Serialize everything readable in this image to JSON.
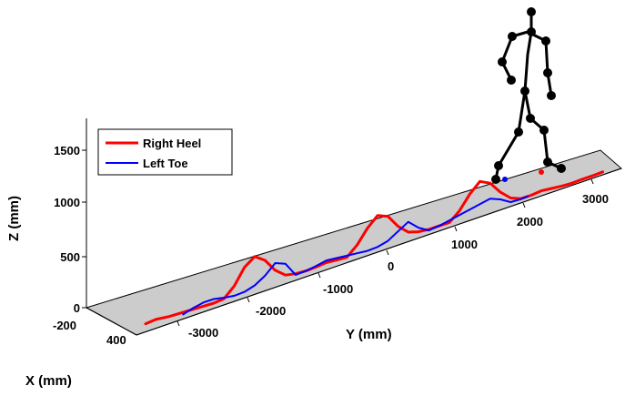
{
  "chart_data": {
    "type": "line",
    "title": "",
    "zlabel": "Z (mm)",
    "ylabel": "Y (mm)",
    "xlabel": "X (mm)",
    "z_ticks": [
      "0",
      "500",
      "1000",
      "1500"
    ],
    "y_ticks": [
      "-3000",
      "-2000",
      "-1000",
      "0",
      "1000",
      "2000",
      "3000"
    ],
    "x_ticks": [
      "-200",
      "400"
    ],
    "legend": {
      "placement": "top-left",
      "entries": [
        "Right Heel",
        "Left Toe"
      ]
    },
    "series": [
      {
        "name": "Right Heel",
        "color": "#ff0000",
        "y": [
          -3600,
          -3450,
          -3250,
          -3000,
          -2800,
          -2600,
          -2450,
          -2300,
          -2150,
          -2000,
          -1850,
          -1700,
          -1550,
          -1400,
          -1250,
          -1100,
          -950,
          -800,
          -650,
          -500,
          -350,
          -200,
          -50,
          100,
          250,
          400,
          550,
          700,
          850,
          1000,
          1150,
          1300,
          1450,
          1600,
          1750,
          1900,
          2050,
          2200,
          2350,
          2500,
          2650,
          2800,
          2950,
          3100
        ],
        "z": [
          20,
          30,
          15,
          10,
          5,
          0,
          10,
          100,
          250,
          320,
          250,
          120,
          40,
          20,
          15,
          20,
          30,
          20,
          15,
          100,
          230,
          320,
          280,
          150,
          60,
          30,
          20,
          20,
          20,
          100,
          230,
          320,
          270,
          150,
          60,
          20,
          20,
          30,
          20,
          10,
          5,
          10,
          10,
          15
        ]
      },
      {
        "name": "Left Toe",
        "color": "#0000ff",
        "y": [
          -3050,
          -2900,
          -2750,
          -2600,
          -2450,
          -2300,
          -2150,
          -2000,
          -1850,
          -1700,
          -1550,
          -1400,
          -1250,
          -1100,
          -950,
          -800,
          -650,
          -500,
          -350,
          -200,
          -50,
          100,
          250,
          400,
          550,
          700,
          850,
          1000,
          1150,
          1300,
          1450,
          1600,
          1750,
          1900,
          2000
        ],
        "z": [
          -10,
          20,
          40,
          40,
          20,
          5,
          10,
          40,
          100,
          190,
          150,
          10,
          15,
          30,
          50,
          40,
          30,
          20,
          10,
          15,
          40,
          100,
          160,
          70,
          10,
          20,
          40,
          60,
          80,
          100,
          120,
          80,
          20,
          15,
          20
        ]
      }
    ],
    "plane": {
      "x_range": [
        -200,
        400
      ],
      "y_range": [
        -3800,
        3400
      ],
      "z": 0
    },
    "skeleton": {
      "color": "#000000"
    },
    "grid": false
  }
}
